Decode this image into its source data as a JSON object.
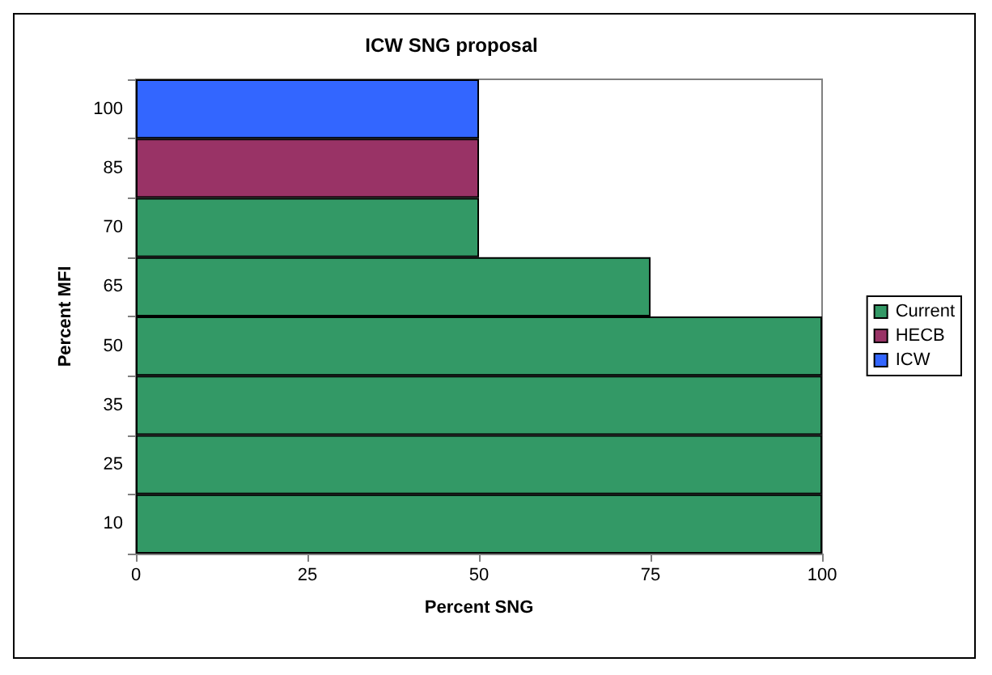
{
  "chart_data": {
    "type": "bar",
    "orientation": "horizontal",
    "stacked": true,
    "title": "ICW SNG proposal",
    "xlabel": "Percent SNG",
    "ylabel": "Percent MFI",
    "categories": [
      "100",
      "85",
      "70",
      "65",
      "50",
      "35",
      "25",
      "10"
    ],
    "series": [
      {
        "name": "Current",
        "color": "#339966",
        "values": [
          null,
          null,
          50,
          75,
          100,
          100,
          100,
          100
        ]
      },
      {
        "name": "HECB",
        "color": "#993366",
        "values": [
          null,
          50,
          null,
          null,
          null,
          null,
          null,
          null
        ]
      },
      {
        "name": "ICW",
        "color": "#3366ff",
        "values": [
          50,
          null,
          null,
          null,
          null,
          null,
          null,
          null
        ]
      }
    ],
    "xlim": [
      0,
      100
    ],
    "xticks": [
      0,
      25,
      50,
      75,
      100
    ],
    "grid": false,
    "legend": "right"
  }
}
